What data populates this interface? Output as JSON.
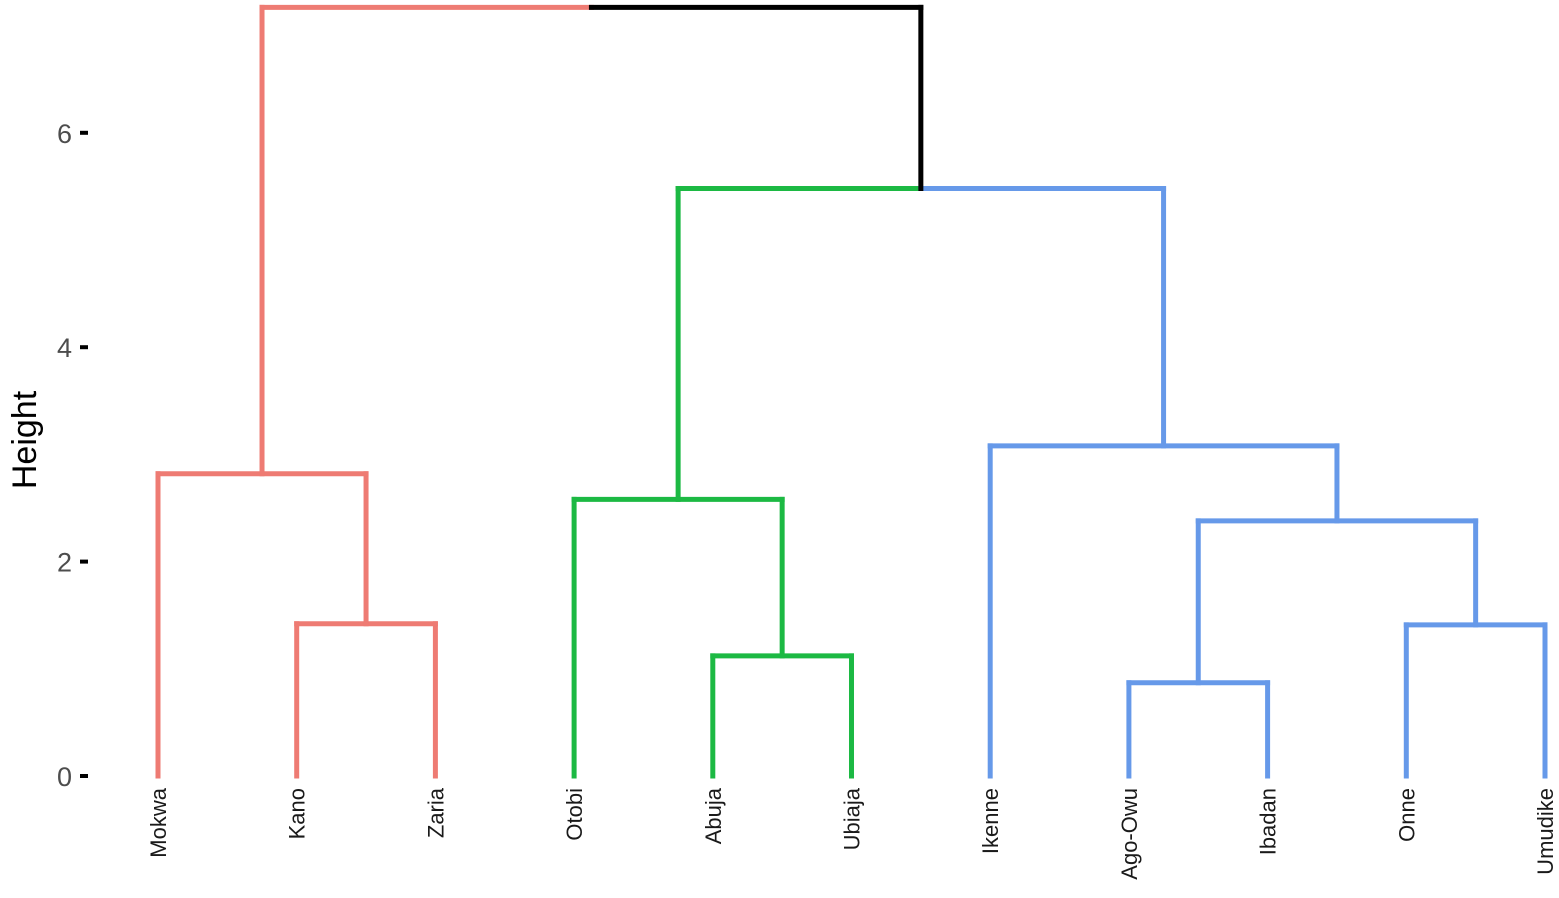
{
  "chart_data": {
    "type": "dendrogram",
    "ylabel": "Height",
    "ylim": [
      0,
      7.2
    ],
    "yticks": [
      0,
      2,
      4,
      6
    ],
    "grid": false,
    "leaves": [
      "Mokwa",
      "Kano",
      "Zaria",
      "Otobi",
      "Abuja",
      "Ubiaja",
      "Ikenne",
      "Ago-Owu",
      "Ibadan",
      "Onne",
      "Umudike"
    ],
    "colors": {
      "red": "#ee7b73",
      "green": "#1cb943",
      "blue": "#6699e9",
      "black": "#000000"
    },
    "merges": [
      {
        "id": "kz",
        "children": [
          "Kano",
          "Zaria"
        ],
        "height": 1.42,
        "color": "red"
      },
      {
        "id": "mkz",
        "children": [
          "Mokwa",
          "kz"
        ],
        "height": 2.82,
        "color": "red"
      },
      {
        "id": "au",
        "children": [
          "Abuja",
          "Ubiaja"
        ],
        "height": 1.12,
        "color": "green"
      },
      {
        "id": "oau",
        "children": [
          "Otobi",
          "au"
        ],
        "height": 2.58,
        "color": "green"
      },
      {
        "id": "ai",
        "children": [
          "Ago-Owu",
          "Ibadan"
        ],
        "height": 0.87,
        "color": "blue"
      },
      {
        "id": "ou",
        "children": [
          "Onne",
          "Umudike"
        ],
        "height": 1.41,
        "color": "blue"
      },
      {
        "id": "aiou",
        "children": [
          "ai",
          "ou"
        ],
        "height": 2.38,
        "color": "blue"
      },
      {
        "id": "iaiou",
        "children": [
          "Ikenne",
          "aiou"
        ],
        "height": 3.08,
        "color": "blue"
      },
      {
        "id": "gb",
        "children": [
          "oau",
          "iaiou"
        ],
        "height": 5.48,
        "color": "mixed"
      },
      {
        "id": "root",
        "children": [
          "mkz",
          "gb"
        ],
        "height": 7.17,
        "color": "mixed"
      }
    ]
  }
}
